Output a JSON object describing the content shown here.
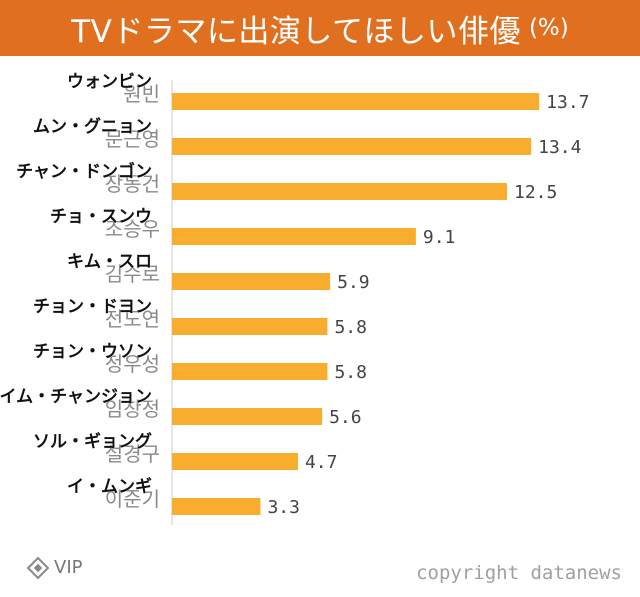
{
  "header": {
    "title": "TVドラマに出演してほしい俳優",
    "unit": "(%)"
  },
  "footer": {
    "source_icon": "diamond-icon",
    "source_label": "VIP",
    "copyright": "copyright datanews"
  },
  "colors": {
    "header_bg": "#e0701f",
    "bar": "#f8ad2f",
    "axis": "#cccccc"
  },
  "chart_data": {
    "type": "bar",
    "orientation": "horizontal",
    "title": "TVドラマに出演してほしい俳優",
    "unit": "(%)",
    "categories": [
      "원빈",
      "문근영",
      "장동건",
      "조승우",
      "김수로",
      "전도연",
      "정우성",
      "임창정",
      "설경구",
      "이준기"
    ],
    "annotations_ja": [
      "ウォンビン",
      "ムン・グニョン",
      "チャン・ドンゴン",
      "チョ・スンウ",
      "キム・スロ",
      "チョン・ドヨン",
      "チョン・ウソン",
      "イム・チャンジョン",
      "ソル・ギョング",
      "イ・ムンギ"
    ],
    "values": [
      13.7,
      13.4,
      12.5,
      9.1,
      5.9,
      5.8,
      5.8,
      5.6,
      4.7,
      3.3
    ],
    "value_labels": [
      "13.7",
      "13.4",
      "12.5",
      "9.1",
      "5.9",
      "5.8",
      "5.8",
      "5.6",
      "4.7",
      "3.3"
    ],
    "xlim": [
      0,
      16
    ],
    "grid": false,
    "legend": "none"
  }
}
